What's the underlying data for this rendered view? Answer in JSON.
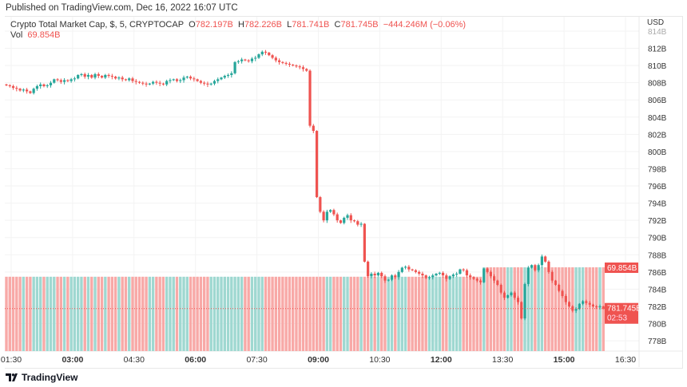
{
  "published": "Published on TradingView.com, Dec 16, 2022 16:07 UTC",
  "legend": {
    "symbol": "Crypto Total Market Cap, $, 5, CRYPTOCAP",
    "o_label": "O",
    "o": "782.197B",
    "h_label": "H",
    "h": "782.226B",
    "l_label": "L",
    "l": "781.741B",
    "c_label": "C",
    "c": "781.745B",
    "change": "−444.246M (−0.06%)",
    "vol_label": "Vol",
    "vol": "69.854B"
  },
  "currency": "USD",
  "price_label": "781.745B",
  "countdown": "02:53",
  "vol_badge": "69.854B",
  "logo_text": "TradingView",
  "colors": {
    "up": "#26a69a",
    "down": "#ef5350",
    "up_vol": "#9fd8d1",
    "down_vol": "#f8a9a7"
  },
  "chart_data": {
    "type": "candlestick",
    "interval_minutes": 5,
    "y_ticks": [
      "814B",
      "812B",
      "810B",
      "808B",
      "806B",
      "804B",
      "802B",
      "800B",
      "798B",
      "796B",
      "794B",
      "792B",
      "790B",
      "788B",
      "786B",
      "784B",
      "782B",
      "780B",
      "778B"
    ],
    "ylim": [
      777,
      815
    ],
    "x_ticks": [
      "01:30",
      "03:00",
      "04:30",
      "06:00",
      "07:30",
      "09:00",
      "10:30",
      "12:00",
      "13:30",
      "15:00",
      "16:30"
    ],
    "first_open": 807.8,
    "closes": [
      807.7,
      807.6,
      807.4,
      807.3,
      807.1,
      807.2,
      807.0,
      806.8,
      807.3,
      807.6,
      807.8,
      807.6,
      807.7,
      808.0,
      808.4,
      808.3,
      808.1,
      808.3,
      808.2,
      808.4,
      808.5,
      808.9,
      809.0,
      808.7,
      808.9,
      808.6,
      809.0,
      808.8,
      808.6,
      808.9,
      808.8,
      808.7,
      808.5,
      808.6,
      808.4,
      808.3,
      808.5,
      808.2,
      808.1,
      808.0,
      807.9,
      807.8,
      807.9,
      808.1,
      808.0,
      807.9,
      807.8,
      808.2,
      808.3,
      808.4,
      808.2,
      808.3,
      808.6,
      808.7,
      808.5,
      808.4,
      808.2,
      808.0,
      807.9,
      807.8,
      807.9,
      808.2,
      808.4,
      808.6,
      808.8,
      808.9,
      809.1,
      810.4,
      810.5,
      810.7,
      810.6,
      810.5,
      810.8,
      810.9,
      811.3,
      811.6,
      811.5,
      811.2,
      810.9,
      810.6,
      810.4,
      810.3,
      810.2,
      810.1,
      810.0,
      809.9,
      809.8,
      809.6,
      809.4,
      803.0,
      802.4,
      794.7,
      793.0,
      792.0,
      793.0,
      793.2,
      792.7,
      792.0,
      791.7,
      792.3,
      792.6,
      792.0,
      791.9,
      791.5,
      791.6,
      787.2,
      785.5,
      785.8,
      785.6,
      785.9,
      785.5,
      785.0,
      785.1,
      785.6,
      785.4,
      786.0,
      786.5,
      786.6,
      786.3,
      786.2,
      786.0,
      785.8,
      785.6,
      785.3,
      785.4,
      785.6,
      785.8,
      785.9,
      785.6,
      785.2,
      785.5,
      785.7,
      785.8,
      786.3,
      786.2,
      785.6,
      785.4,
      785.2,
      785.0,
      784.8,
      786.4,
      786.0,
      785.5,
      785.0,
      784.5,
      783.6,
      783.0,
      783.3,
      783.6,
      783.0,
      782.5,
      780.6,
      784.6,
      786.5,
      786.8,
      786.2,
      786.8,
      787.8,
      787.2,
      786.0,
      785.0,
      784.5,
      783.8,
      783.2,
      782.5,
      782.0,
      781.5,
      781.7,
      782.3,
      782.6,
      782.4,
      782.2,
      782.0,
      781.9,
      782.0,
      781.745
    ],
    "volume_segments": [
      {
        "from": 0,
        "to": 139,
        "value_B": 62.0
      },
      {
        "from": 140,
        "to": 175,
        "value_B": 69.854
      }
    ],
    "last_close": 781.745
  }
}
